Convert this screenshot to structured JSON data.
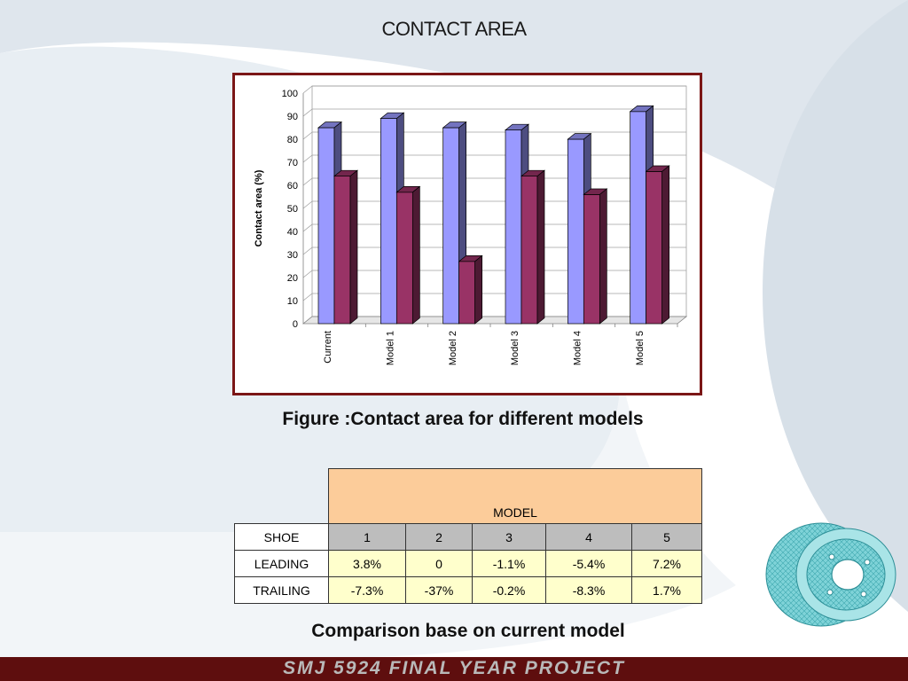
{
  "slide": {
    "title": "CONTACT AREA",
    "figure_caption": "Figure :Contact area for different models",
    "comparison_caption": "Comparison base on current model",
    "footer": "SMJ 5924 FINAL YEAR PROJECT"
  },
  "colors": {
    "frame": "#7b1616",
    "series_a": "#9999ff",
    "series_b": "#993366",
    "footer_bar": "#5e0e0e",
    "table_header": "#fccc9a",
    "table_values": "#ffffcc",
    "table_numbers": "#bdbdbd"
  },
  "chart_data": {
    "type": "bar",
    "categories": [
      "Current",
      "Model 1",
      "Model 2",
      "Model 3",
      "Model 4",
      "Model 5"
    ],
    "series": [
      {
        "values": [
          85,
          89,
          85,
          84,
          80,
          92
        ]
      },
      {
        "values": [
          64,
          57,
          27,
          64,
          56,
          66
        ]
      }
    ],
    "title": "",
    "xlabel": "",
    "ylabel": "Contact area (%)",
    "ylim": [
      0,
      100
    ],
    "yticks": [
      0,
      10,
      20,
      30,
      40,
      50,
      60,
      70,
      80,
      90,
      100
    ],
    "grid": true,
    "three_d": true
  },
  "table": {
    "group_header": "MODEL",
    "row_header": "SHOE",
    "columns": [
      "1",
      "2",
      "3",
      "4",
      "5"
    ],
    "rows": [
      {
        "label": "LEADING",
        "values": [
          "3.8%",
          "0",
          "-1.1%",
          "-5.4%",
          "7.2%"
        ]
      },
      {
        "label": "TRAILING",
        "values": [
          "-7.3%",
          "-37%",
          "-0.2%",
          "-8.3%",
          "1.7%"
        ]
      }
    ]
  }
}
